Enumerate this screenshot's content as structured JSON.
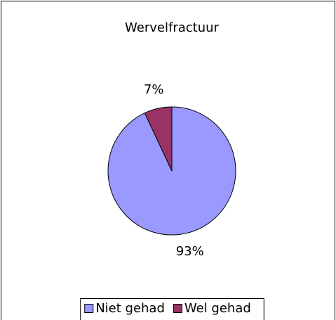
{
  "chart_data": {
    "type": "pie",
    "title": "Wervelfractuur",
    "categories": [
      "Niet gehad",
      "Wel gehad"
    ],
    "values": [
      93,
      7
    ],
    "value_labels": [
      "93%",
      "7%"
    ],
    "colors": [
      "#9999ff",
      "#993366"
    ],
    "legend": "bottom"
  }
}
